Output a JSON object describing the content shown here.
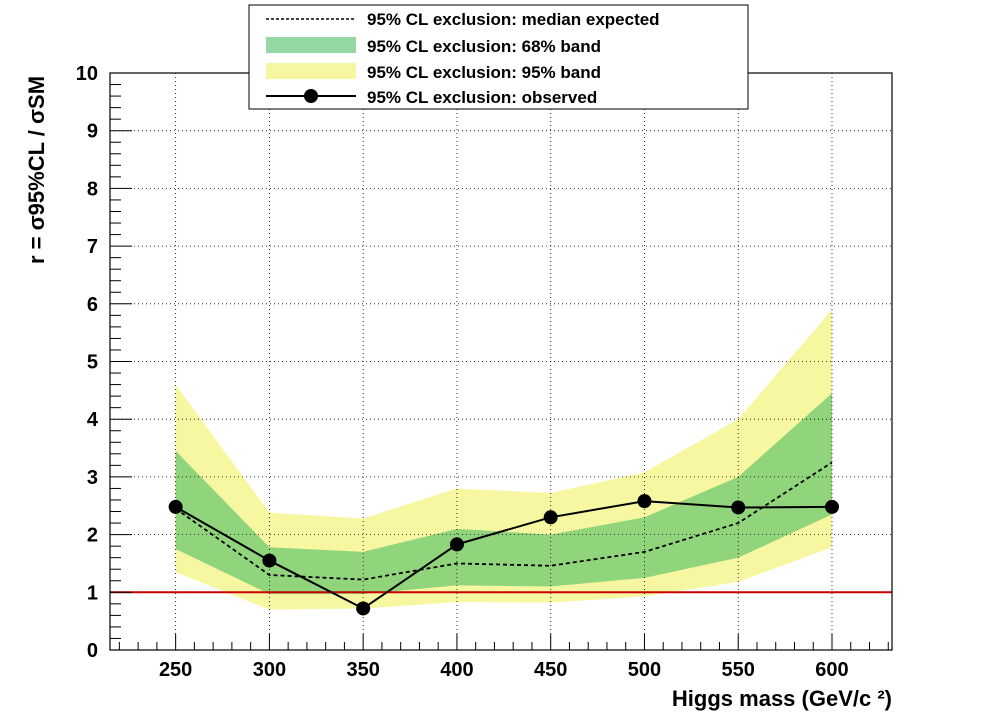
{
  "chart_data": {
    "type": "line",
    "title": "",
    "xlabel": "Higgs mass (GeV/c ²)",
    "ylabel": "r = σ95%CL / σSM",
    "xlim": [
      215,
      632
    ],
    "ylim": [
      0,
      10
    ],
    "x_ticks": [
      250,
      300,
      350,
      400,
      450,
      500,
      550,
      600
    ],
    "y_ticks": [
      0,
      1,
      2,
      3,
      4,
      5,
      6,
      7,
      8,
      9,
      10
    ],
    "grid": true,
    "legend_position": "top-center",
    "x": [
      250,
      300,
      350,
      400,
      450,
      500,
      550,
      600
    ],
    "series": [
      {
        "name": "95% CL exclusion: median expected",
        "style": "dashed",
        "color": "#000000",
        "values": [
          2.45,
          1.3,
          1.22,
          1.5,
          1.46,
          1.7,
          2.2,
          3.25
        ]
      },
      {
        "name": "95% CL exclusion: 68% band",
        "style": "band",
        "color": "#3cb85c",
        "lower": [
          1.75,
          0.97,
          0.97,
          1.12,
          1.1,
          1.25,
          1.6,
          2.35
        ],
        "upper": [
          3.45,
          1.78,
          1.7,
          2.1,
          2.0,
          2.3,
          3.0,
          4.45
        ]
      },
      {
        "name": "95% CL exclusion: 95% band",
        "style": "band",
        "color": "#f5f58a",
        "lower": [
          1.35,
          0.7,
          0.72,
          0.83,
          0.82,
          0.93,
          1.18,
          1.78
        ],
        "upper": [
          4.6,
          2.38,
          2.28,
          2.8,
          2.72,
          3.08,
          4.0,
          5.9
        ]
      },
      {
        "name": "95% CL exclusion: observed",
        "style": "line-markers",
        "color": "#000000",
        "values": [
          2.48,
          1.55,
          0.72,
          1.83,
          2.3,
          2.58,
          2.47,
          2.48
        ]
      }
    ],
    "reference_line": {
      "y": 1,
      "color": "#cc0000"
    }
  },
  "legend": [
    {
      "key": "expected",
      "label": "95% CL exclusion: median expected"
    },
    {
      "key": "band68",
      "label": "95% CL exclusion: 68% band"
    },
    {
      "key": "band95",
      "label": "95% CL exclusion: 95% band"
    },
    {
      "key": "observed",
      "label": "95% CL exclusion: observed"
    }
  ]
}
